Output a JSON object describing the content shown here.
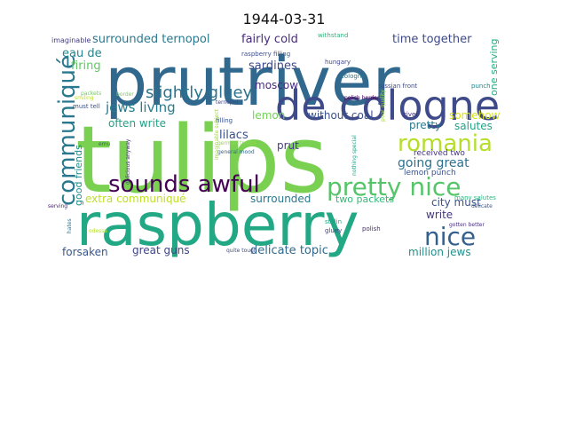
{
  "title": "1944-03-31",
  "words": [
    {
      "text": "tulips",
      "color": "#7ad151"
    },
    {
      "text": "prutriver",
      "color": "#31688e"
    },
    {
      "text": "raspberry",
      "color": "#22a884"
    },
    {
      "text": "de cologne",
      "color": "#3e4a89"
    },
    {
      "text": "romania",
      "color": "#b5de2b"
    },
    {
      "text": "pretty nice",
      "color": "#54c568"
    },
    {
      "text": "sounds awful",
      "color": "#440154"
    },
    {
      "text": "nice",
      "color": "#35608d"
    },
    {
      "text": "communiqué",
      "color": "#2a788e"
    },
    {
      "text": "slightly gluey",
      "color": "#2c728e"
    },
    {
      "text": "surrounded ternopol",
      "color": "#2a788e"
    },
    {
      "text": "fairly cold",
      "color": "#472c7a"
    },
    {
      "text": "time together",
      "color": "#3e4989"
    },
    {
      "text": "eau de",
      "color": "#25848e"
    },
    {
      "text": "firing",
      "color": "#5dc863"
    },
    {
      "text": "sardines",
      "color": "#3e4a89"
    },
    {
      "text": "moscow",
      "color": "#472d7b"
    },
    {
      "text": "jews living",
      "color": "#287c8e"
    },
    {
      "text": "often write",
      "color": "#1fa287"
    },
    {
      "text": "lemon",
      "color": "#74d055"
    },
    {
      "text": "without coal",
      "color": "#3b518b"
    },
    {
      "text": "somehow",
      "color": "#d8e219"
    },
    {
      "text": "salutes",
      "color": "#20a386"
    },
    {
      "text": "lilacs",
      "color": "#3b528b"
    },
    {
      "text": "prut",
      "color": "#433e85"
    },
    {
      "text": "going great",
      "color": "#2d708e"
    },
    {
      "text": "pretty",
      "color": "#2a788e"
    },
    {
      "text": "extra communiqué",
      "color": "#bddf26"
    },
    {
      "text": "surrounded",
      "color": "#2a778e"
    },
    {
      "text": "two packets",
      "color": "#35b779"
    },
    {
      "text": "city must",
      "color": "#3b528b"
    },
    {
      "text": "write",
      "color": "#453781"
    },
    {
      "text": "great guns",
      "color": "#404588"
    },
    {
      "text": "delicate topic",
      "color": "#306a8e"
    },
    {
      "text": "forsaken",
      "color": "#39568c"
    },
    {
      "text": "million jews",
      "color": "#21908d"
    },
    {
      "text": "good friends",
      "color": "#228d8d"
    },
    {
      "text": "one serving",
      "color": "#25ac82"
    },
    {
      "text": "received two",
      "color": "#46337f"
    },
    {
      "text": "lemon punch",
      "color": "#3b528b"
    },
    {
      "text": "imaginable",
      "color": "#433e85"
    },
    {
      "text": "withstand",
      "color": "#2eb37c"
    },
    {
      "text": "raspberry filling",
      "color": "#3c4f8a"
    },
    {
      "text": "hungary",
      "color": "#404688"
    },
    {
      "text": "cologne",
      "color": "#2a778e"
    },
    {
      "text": "russian front",
      "color": "#3e4a89"
    },
    {
      "text": "punch",
      "color": "#25838e"
    },
    {
      "text": "packets",
      "color": "#6ccd5a"
    },
    {
      "text": "must tell",
      "color": "#3b528b"
    },
    {
      "text": "ternopol",
      "color": "#404688"
    },
    {
      "text": "filling",
      "color": "#3b528b"
    },
    {
      "text": "smiling",
      "color": "#bddf26"
    },
    {
      "text": "border",
      "color": "#7ad151"
    },
    {
      "text": "polish border",
      "color": "#440154"
    },
    {
      "text": "river",
      "color": "#46327e"
    },
    {
      "text": "many salutes",
      "color": "#2eb37c"
    },
    {
      "text": "gotten better",
      "color": "#46307e"
    },
    {
      "text": "delicate",
      "color": "#39568c"
    },
    {
      "text": "stalin",
      "color": "#20a486"
    },
    {
      "text": "gluey",
      "color": "#424086"
    },
    {
      "text": "polish",
      "color": "#472c7a"
    },
    {
      "text": "quite tough",
      "color": "#3b528b"
    },
    {
      "text": "serving",
      "color": "#481b6d"
    },
    {
      "text": "hates",
      "color": "#2d708e"
    },
    {
      "text": "odessa",
      "color": "#b5de2b"
    },
    {
      "text": "german troops",
      "color": "#95d840"
    },
    {
      "text": "general mood",
      "color": "#31688e"
    },
    {
      "text": "emu",
      "color": "#3b528b"
    },
    {
      "text": "delicious anyway",
      "color": "#472d7b"
    },
    {
      "text": "imaginable subject",
      "color": "#9fda3a"
    },
    {
      "text": "poor quality",
      "color": "#a0da39"
    },
    {
      "text": "nothing special",
      "color": "#20a386"
    }
  ]
}
